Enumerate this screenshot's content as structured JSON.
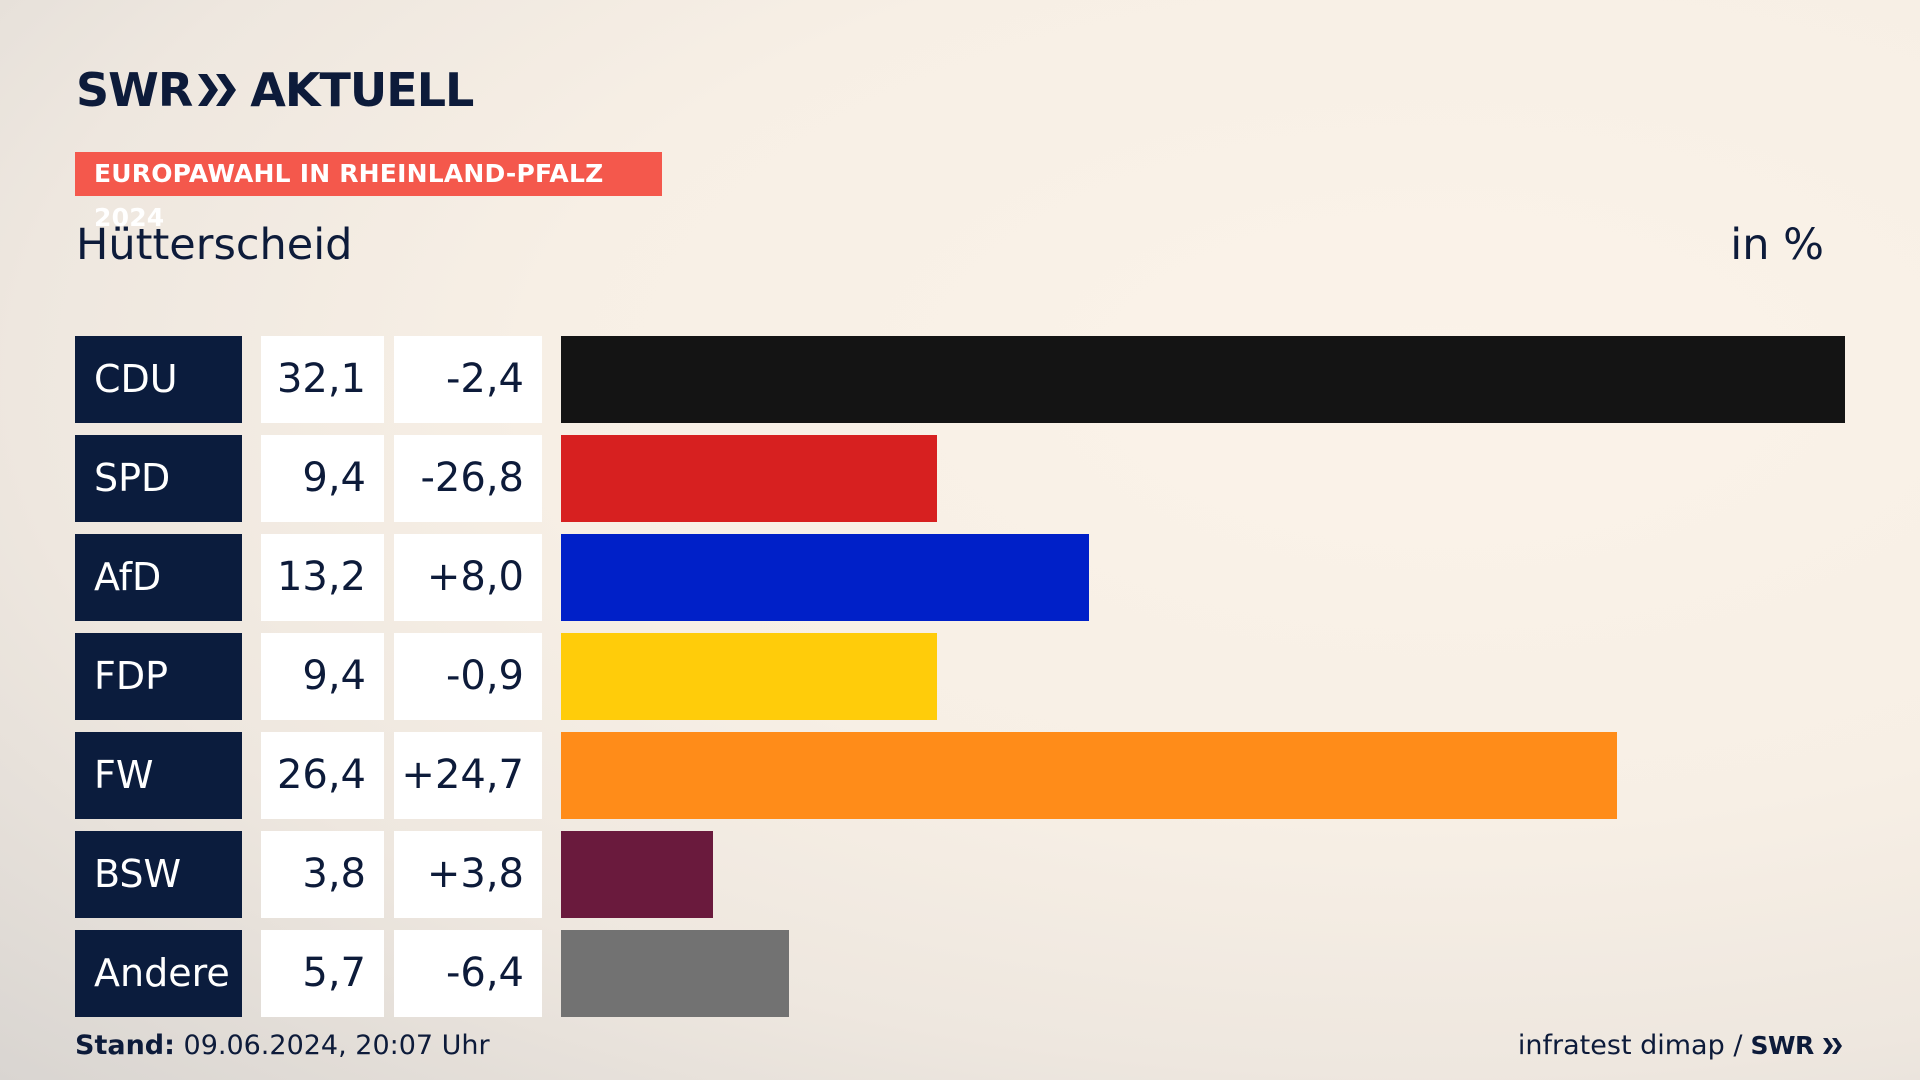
{
  "brand": {
    "logo_left": "SWR",
    "logo_right": "AKTUELL",
    "footer_logo": "SWR"
  },
  "header": {
    "tag": "EUROPAWAHL IN RHEINLAND-PFALZ 2024",
    "subtitle": "Hütterscheid",
    "unit": "in %"
  },
  "footer": {
    "stand_label": "Stand:",
    "stand_value": "09.06.2024, 20:07 Uhr",
    "source": "infratest dimap /"
  },
  "chart_data": {
    "type": "bar",
    "orientation": "horizontal",
    "categories": [
      "CDU",
      "SPD",
      "AfD",
      "FDP",
      "FW",
      "BSW",
      "Andere"
    ],
    "values": [
      32.1,
      9.4,
      13.2,
      9.4,
      26.4,
      3.8,
      5.7
    ],
    "value_labels": [
      "32,1",
      "9,4",
      "13,2",
      "9,4",
      "26,4",
      "3,8",
      "5,7"
    ],
    "diff_labels": [
      "-2,4",
      "-26,8",
      "+8,0",
      "-0,9",
      "+24,7",
      "+3,8",
      "-6,4"
    ],
    "colors": [
      "#141414",
      "#d72020",
      "#0020c8",
      "#ffcc0a",
      "#ff8c19",
      "#6a1a3d",
      "#727272"
    ],
    "xlim": [
      0,
      32.1
    ],
    "grid": false,
    "legend": "none"
  }
}
